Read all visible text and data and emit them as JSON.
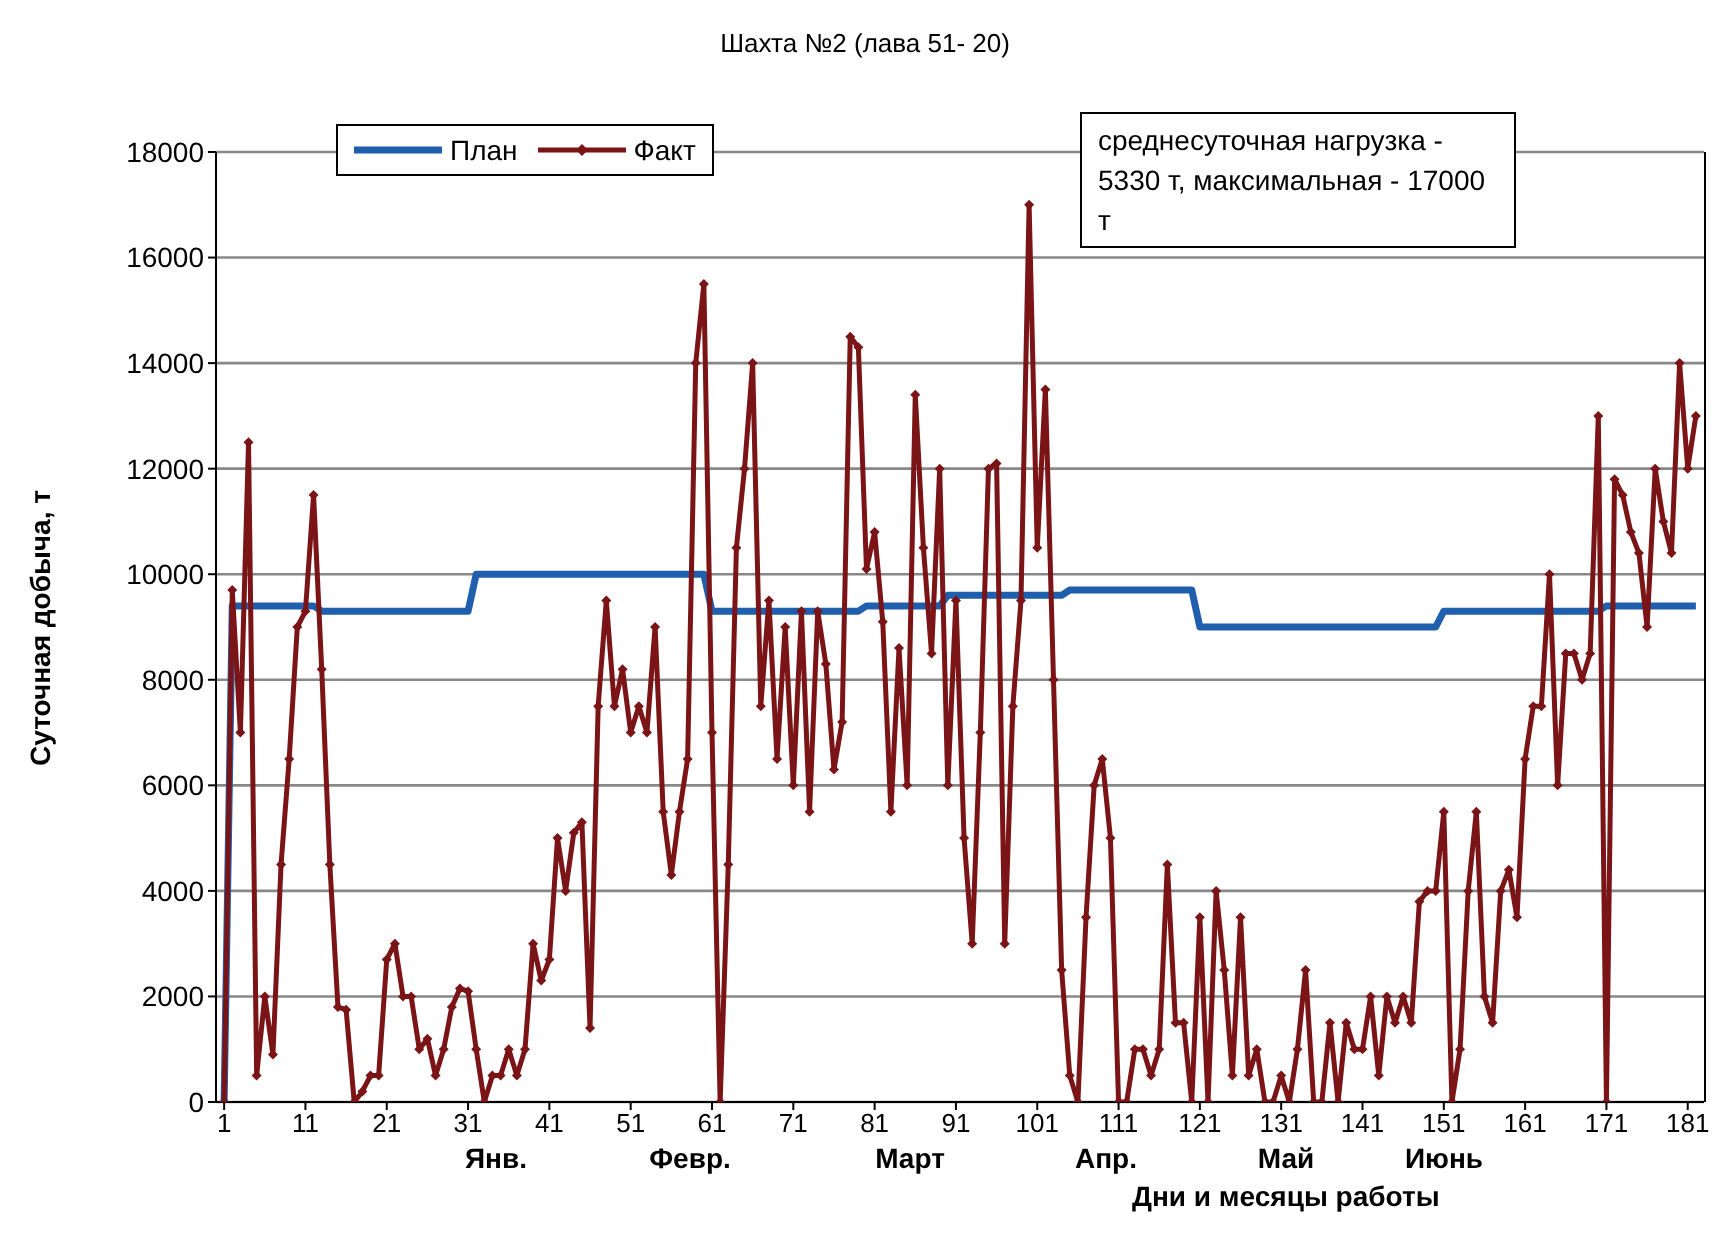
{
  "chart_data": {
    "type": "line",
    "title": "Шахта №2  (лава 51- 20)",
    "xlabel": "Дни и месяцы работы",
    "ylabel": "Суточная добыча, т",
    "x": [
      1,
      2,
      3,
      4,
      5,
      6,
      7,
      8,
      9,
      10,
      11,
      12,
      13,
      14,
      15,
      16,
      17,
      18,
      19,
      20,
      21,
      22,
      23,
      24,
      25,
      26,
      27,
      28,
      29,
      30,
      31,
      32,
      33,
      34,
      35,
      36,
      37,
      38,
      39,
      40,
      41,
      42,
      43,
      44,
      45,
      46,
      47,
      48,
      49,
      50,
      51,
      52,
      53,
      54,
      55,
      56,
      57,
      58,
      59,
      60,
      61,
      62,
      63,
      64,
      65,
      66,
      67,
      68,
      69,
      70,
      71,
      72,
      73,
      74,
      75,
      76,
      77,
      78,
      79,
      80,
      81,
      82,
      83,
      84,
      85,
      86,
      87,
      88,
      89,
      90,
      91,
      92,
      93,
      94,
      95,
      96,
      97,
      98,
      99,
      100,
      101,
      102,
      103,
      104,
      105,
      106,
      107,
      108,
      109,
      110,
      111,
      112,
      113,
      114,
      115,
      116,
      117,
      118,
      119,
      120,
      121,
      122,
      123,
      124,
      125,
      126,
      127,
      128,
      129,
      130,
      131,
      132,
      133,
      134,
      135,
      136,
      137,
      138,
      139,
      140,
      141,
      142,
      143,
      144,
      145,
      146,
      147,
      148,
      149,
      150,
      151,
      152,
      153,
      154,
      155,
      156,
      157,
      158,
      159,
      160,
      161,
      162,
      163,
      164,
      165,
      166,
      167,
      168,
      169,
      170,
      171,
      172,
      173,
      174,
      175,
      176,
      177,
      178,
      179,
      180,
      181,
      182
    ],
    "series": [
      {
        "name": "План",
        "color": "#1f5fad",
        "marker": "none",
        "values": [
          0,
          9400,
          9400,
          9400,
          9400,
          9400,
          9400,
          9400,
          9400,
          9400,
          9400,
          9400,
          9300,
          9300,
          9300,
          9300,
          9300,
          9300,
          9300,
          9300,
          9300,
          9300,
          9300,
          9300,
          9300,
          9300,
          9300,
          9300,
          9300,
          9300,
          9300,
          10000,
          10000,
          10000,
          10000,
          10000,
          10000,
          10000,
          10000,
          10000,
          10000,
          10000,
          10000,
          10000,
          10000,
          10000,
          10000,
          10000,
          10000,
          10000,
          10000,
          10000,
          10000,
          10000,
          10000,
          10000,
          10000,
          10000,
          10000,
          10000,
          9300,
          9300,
          9300,
          9300,
          9300,
          9300,
          9300,
          9300,
          9300,
          9300,
          9300,
          9300,
          9300,
          9300,
          9300,
          9300,
          9300,
          9300,
          9300,
          9400,
          9400,
          9400,
          9400,
          9400,
          9400,
          9400,
          9400,
          9400,
          9400,
          9600,
          9600,
          9600,
          9600,
          9600,
          9600,
          9600,
          9600,
          9600,
          9600,
          9600,
          9600,
          9600,
          9600,
          9600,
          9700,
          9700,
          9700,
          9700,
          9700,
          9700,
          9700,
          9700,
          9700,
          9700,
          9700,
          9700,
          9700,
          9700,
          9700,
          9700,
          9000,
          9000,
          9000,
          9000,
          9000,
          9000,
          9000,
          9000,
          9000,
          9000,
          9000,
          9000,
          9000,
          9000,
          9000,
          9000,
          9000,
          9000,
          9000,
          9000,
          9000,
          9000,
          9000,
          9000,
          9000,
          9000,
          9000,
          9000,
          9000,
          9000,
          9300,
          9300,
          9300,
          9300,
          9300,
          9300,
          9300,
          9300,
          9300,
          9300,
          9300,
          9300,
          9300,
          9300,
          9300,
          9300,
          9300,
          9300,
          9300,
          9300,
          9400,
          9400,
          9400,
          9400,
          9400,
          9400,
          9400,
          9400,
          9400,
          9400,
          9400,
          9400
        ]
      },
      {
        "name": "Факт",
        "color": "#7b1416",
        "marker": "diamond",
        "values": [
          0,
          9700,
          7000,
          12500,
          500,
          2000,
          900,
          4500,
          6500,
          9000,
          9300,
          11500,
          8200,
          4500,
          1800,
          1750,
          0,
          200,
          500,
          500,
          2700,
          3000,
          2000,
          2000,
          1000,
          1200,
          500,
          1000,
          1800,
          2150,
          2100,
          1000,
          0,
          500,
          500,
          1000,
          500,
          1000,
          3000,
          2300,
          2700,
          5000,
          4000,
          5100,
          5300,
          1400,
          7500,
          9500,
          7500,
          8200,
          7000,
          7500,
          7000,
          9000,
          5500,
          4300,
          5500,
          6500,
          14000,
          15500,
          7000,
          0,
          4500,
          10500,
          12000,
          14000,
          7500,
          9500,
          6500,
          9000,
          6000,
          9300,
          5500,
          9300,
          8300,
          6300,
          7200,
          14500,
          14300,
          10100,
          10800,
          9100,
          5500,
          8600,
          6000,
          13400,
          10500,
          8500,
          12000,
          6000,
          9500,
          5000,
          3000,
          7000,
          12000,
          12100,
          3000,
          7500,
          9500,
          17000,
          10500,
          13500,
          8000,
          2500,
          500,
          0,
          3500,
          6000,
          6500,
          5000,
          0,
          0,
          1000,
          1000,
          500,
          1000,
          4500,
          1500,
          1500,
          0,
          3500,
          0,
          4000,
          2500,
          500,
          3500,
          500,
          1000,
          0,
          0,
          500,
          0,
          1000,
          2500,
          0,
          0,
          1500,
          0,
          1500,
          1000,
          1000,
          2000,
          500,
          2000,
          1500,
          2000,
          1500,
          3800,
          4000,
          4000,
          5500,
          0,
          1000,
          4000,
          5500,
          2000,
          1500,
          4000,
          4400,
          3500,
          6500,
          7500,
          7500,
          10000,
          6000,
          8500,
          8500,
          8000,
          8500,
          13000,
          0,
          11800,
          11500,
          10800,
          10400,
          9000,
          12000,
          11000,
          10400,
          14000,
          12000,
          13000
        ]
      }
    ],
    "xlim": [
      0,
      183
    ],
    "xticks": [
      1,
      11,
      21,
      31,
      41,
      51,
      61,
      71,
      81,
      91,
      101,
      111,
      121,
      131,
      141,
      151,
      161,
      171,
      181
    ],
    "ylim": [
      0,
      18000
    ],
    "yticks": [
      0,
      2000,
      4000,
      6000,
      8000,
      10000,
      12000,
      14000,
      16000,
      18000
    ],
    "grid": "y",
    "legend": "top",
    "annotations": [
      "среднесуточная нагрузка - 5330 т, максимальная - 17000 т",
      "Янв.",
      "Февр.",
      "Март",
      "Апр.",
      "Май",
      "Июнь"
    ]
  }
}
